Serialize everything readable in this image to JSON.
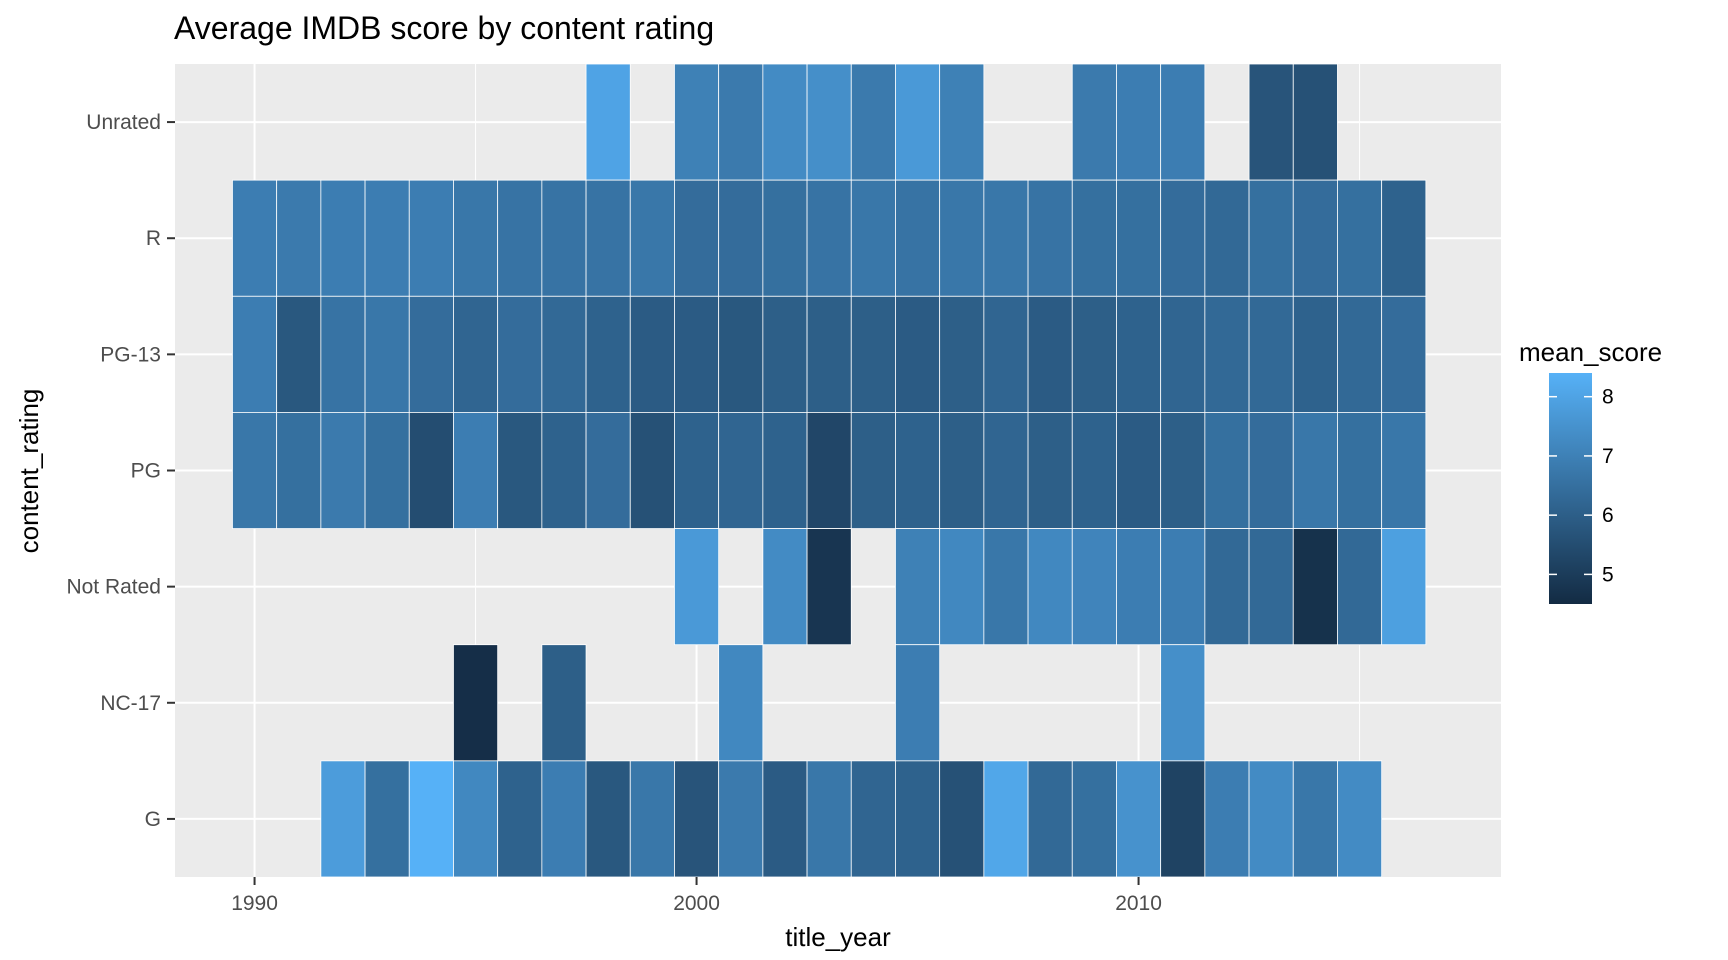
{
  "chart_data": {
    "type": "heatmap",
    "title": "Average IMDB score by content rating",
    "xlabel": "title_year",
    "ylabel": "content_rating",
    "x_ticks": [
      1990,
      2000,
      2010
    ],
    "xlim": [
      1988.2,
      2018.2
    ],
    "categories_y": [
      "G",
      "NC-17",
      "Not Rated",
      "PG",
      "PG-13",
      "R",
      "Unrated"
    ],
    "grid": true,
    "legend": {
      "title": "mean_score",
      "position": "right",
      "ticks": [
        5,
        6,
        7,
        8
      ],
      "range": [
        4.5,
        8.4
      ],
      "low_color": "#132B43",
      "high_color": "#56B1F7"
    },
    "cells": [
      {
        "rating": "Unrated",
        "values": [
          [
            1998,
            8.0
          ],
          [
            2000,
            7.0
          ],
          [
            2001,
            6.8
          ],
          [
            2002,
            7.3
          ],
          [
            2003,
            7.4
          ],
          [
            2004,
            6.8
          ],
          [
            2005,
            7.7
          ],
          [
            2006,
            7.0
          ],
          [
            2009,
            6.8
          ],
          [
            2010,
            6.9
          ],
          [
            2011,
            6.9
          ],
          [
            2013,
            5.7
          ],
          [
            2014,
            5.6
          ]
        ]
      },
      {
        "rating": "R",
        "values": [
          [
            1990,
            6.9
          ],
          [
            1991,
            6.8
          ],
          [
            1992,
            6.9
          ],
          [
            1993,
            6.9
          ],
          [
            1994,
            6.9
          ],
          [
            1995,
            6.7
          ],
          [
            1996,
            6.6
          ],
          [
            1997,
            6.6
          ],
          [
            1998,
            6.6
          ],
          [
            1999,
            6.7
          ],
          [
            2000,
            6.4
          ],
          [
            2001,
            6.4
          ],
          [
            2002,
            6.5
          ],
          [
            2003,
            6.6
          ],
          [
            2004,
            6.7
          ],
          [
            2005,
            6.6
          ],
          [
            2006,
            6.7
          ],
          [
            2007,
            6.7
          ],
          [
            2008,
            6.6
          ],
          [
            2009,
            6.5
          ],
          [
            2010,
            6.5
          ],
          [
            2011,
            6.4
          ],
          [
            2012,
            6.3
          ],
          [
            2013,
            6.5
          ],
          [
            2014,
            6.4
          ],
          [
            2015,
            6.5
          ],
          [
            2016,
            6.1
          ]
        ]
      },
      {
        "rating": "PG-13",
        "values": [
          [
            1990,
            6.9
          ],
          [
            1991,
            5.8
          ],
          [
            1992,
            6.6
          ],
          [
            1993,
            6.7
          ],
          [
            1994,
            6.4
          ],
          [
            1995,
            6.2
          ],
          [
            1996,
            6.4
          ],
          [
            1997,
            6.3
          ],
          [
            1998,
            6.1
          ],
          [
            1999,
            5.9
          ],
          [
            2000,
            5.9
          ],
          [
            2001,
            5.8
          ],
          [
            2002,
            6.0
          ],
          [
            2003,
            6.0
          ],
          [
            2004,
            6.0
          ],
          [
            2005,
            5.9
          ],
          [
            2006,
            6.0
          ],
          [
            2007,
            6.2
          ],
          [
            2008,
            5.9
          ],
          [
            2009,
            6.0
          ],
          [
            2010,
            6.1
          ],
          [
            2011,
            6.2
          ],
          [
            2012,
            6.3
          ],
          [
            2013,
            6.3
          ],
          [
            2014,
            6.1
          ],
          [
            2015,
            6.3
          ],
          [
            2016,
            6.4
          ]
        ]
      },
      {
        "rating": "PG",
        "values": [
          [
            1990,
            6.7
          ],
          [
            1991,
            6.5
          ],
          [
            1992,
            6.8
          ],
          [
            1993,
            6.5
          ],
          [
            1994,
            5.5
          ],
          [
            1995,
            6.9
          ],
          [
            1996,
            5.8
          ],
          [
            1997,
            6.1
          ],
          [
            1998,
            6.4
          ],
          [
            1999,
            5.6
          ],
          [
            2000,
            6.1
          ],
          [
            2001,
            6.2
          ],
          [
            2002,
            6.1
          ],
          [
            2003,
            5.3
          ],
          [
            2004,
            6.0
          ],
          [
            2005,
            6.1
          ],
          [
            2006,
            6.0
          ],
          [
            2007,
            6.2
          ],
          [
            2008,
            6.0
          ],
          [
            2009,
            6.1
          ],
          [
            2010,
            5.9
          ],
          [
            2011,
            6.0
          ],
          [
            2012,
            6.5
          ],
          [
            2013,
            6.4
          ],
          [
            2014,
            6.7
          ],
          [
            2015,
            6.5
          ],
          [
            2016,
            6.7
          ]
        ]
      },
      {
        "rating": "Not Rated",
        "values": [
          [
            2000,
            7.7
          ],
          [
            2002,
            7.3
          ],
          [
            2003,
            4.8
          ],
          [
            2005,
            7.0
          ],
          [
            2006,
            7.2
          ],
          [
            2007,
            6.7
          ],
          [
            2008,
            7.2
          ],
          [
            2009,
            7.1
          ],
          [
            2010,
            6.9
          ],
          [
            2011,
            6.9
          ],
          [
            2012,
            6.3
          ],
          [
            2013,
            6.3
          ],
          [
            2014,
            4.7
          ],
          [
            2015,
            6.3
          ],
          [
            2016,
            7.9
          ]
        ]
      },
      {
        "rating": "NC-17",
        "values": [
          [
            1995,
            4.6
          ],
          [
            1997,
            6.0
          ],
          [
            2001,
            7.2
          ],
          [
            2005,
            6.9
          ],
          [
            2011,
            7.4
          ]
        ]
      },
      {
        "rating": "G",
        "values": [
          [
            1992,
            7.8
          ],
          [
            1993,
            6.5
          ],
          [
            1994,
            8.4
          ],
          [
            1995,
            7.2
          ],
          [
            1996,
            6.1
          ],
          [
            1997,
            6.9
          ],
          [
            1998,
            5.8
          ],
          [
            1999,
            6.7
          ],
          [
            2000,
            5.7
          ],
          [
            2001,
            6.8
          ],
          [
            2002,
            5.9
          ],
          [
            2003,
            6.7
          ],
          [
            2004,
            6.2
          ],
          [
            2005,
            6.1
          ],
          [
            2006,
            5.6
          ],
          [
            2007,
            8.1
          ],
          [
            2008,
            6.3
          ],
          [
            2009,
            6.5
          ],
          [
            2010,
            7.5
          ],
          [
            2011,
            5.2
          ],
          [
            2012,
            6.9
          ],
          [
            2013,
            7.3
          ],
          [
            2014,
            6.7
          ],
          [
            2015,
            7.3
          ]
        ]
      }
    ]
  }
}
